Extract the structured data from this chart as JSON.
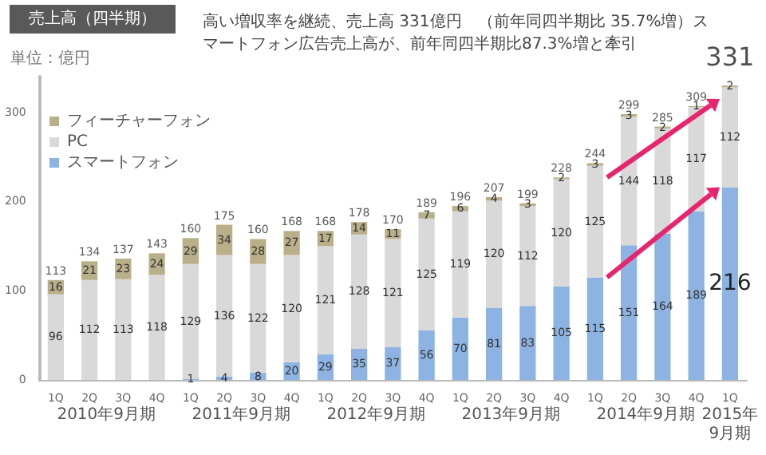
{
  "chart_data": {
    "type": "bar",
    "title": "売上高（四半期）",
    "subtitle": "高い増収率を継続、売上高 331億円　（前年同四半期比 35.7%増）スマートフォン広告売上高が、前年同四半期比87.3%増と牽引",
    "ylabel": "単位：億円",
    "categories": [
      "1Q",
      "2Q",
      "3Q",
      "4Q",
      "1Q",
      "2Q",
      "3Q",
      "4Q",
      "1Q",
      "2Q",
      "3Q",
      "4Q",
      "1Q",
      "2Q",
      "3Q",
      "4Q",
      "1Q",
      "2Q",
      "3Q",
      "4Q",
      "1Q"
    ],
    "stacked": true,
    "series": [
      {
        "name": "スマートフォン",
        "color": "#8db3e2",
        "values": [
          null,
          null,
          null,
          null,
          1,
          4,
          8,
          20,
          29,
          35,
          37,
          56,
          70,
          81,
          83,
          105,
          115,
          151,
          164,
          189,
          216
        ]
      },
      {
        "name": "PC",
        "color": "#d9d9d9",
        "values": [
          96,
          112,
          113,
          118,
          129,
          136,
          122,
          120,
          121,
          128,
          121,
          125,
          119,
          120,
          112,
          120,
          125,
          144,
          118,
          117,
          112
        ]
      },
      {
        "name": "フィーチャーフォン",
        "color": "#b9b08a",
        "values": [
          16,
          21,
          23,
          24,
          29,
          34,
          28,
          27,
          17,
          14,
          11,
          7,
          6,
          4,
          3,
          2,
          3,
          3,
          2,
          1,
          2
        ]
      }
    ],
    "totals": [
      "113",
      "134",
      "137",
      "143",
      "160",
      "175",
      "160",
      "168",
      "168",
      "178",
      "170",
      "189",
      "196",
      "207",
      "199",
      "228",
      "244",
      "299",
      "285",
      "309",
      "331"
    ],
    "data_labels": true,
    "ylim": [
      0,
      340
    ],
    "yticks": [
      0,
      100,
      200,
      300
    ],
    "grid": false,
    "legend": "top left",
    "annotations": [
      "2010年9月期",
      "2011年9月期",
      "2012年9月期",
      "2013年9月期",
      "2014年9月期",
      "2015年9月期"
    ]
  }
}
